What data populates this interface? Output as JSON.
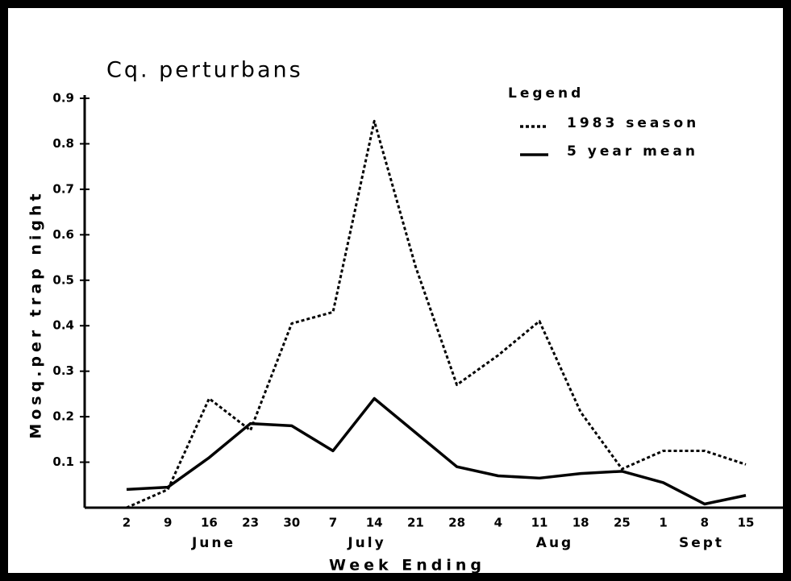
{
  "chart_data": {
    "type": "line",
    "title": "Cq. perturbans",
    "x_label": "Week Ending",
    "y_label": "Mosq.per trap night",
    "legend_title": "Legend",
    "categories": [
      "2",
      "9",
      "16",
      "23",
      "30",
      "7",
      "14",
      "21",
      "28",
      "4",
      "11",
      "18",
      "25",
      "1",
      "8",
      "15"
    ],
    "groups": [
      "June",
      "July",
      "Aug",
      "Sept"
    ],
    "series": [
      {
        "name": "1983 season",
        "color": "#000000",
        "dash": "dotted",
        "values": [
          0.0,
          0.04,
          0.24,
          0.17,
          0.405,
          0.43,
          0.85,
          0.53,
          0.27,
          0.335,
          0.41,
          0.21,
          0.085,
          0.125,
          0.125,
          0.095
        ]
      },
      {
        "name": "5 year mean",
        "color": "#000000",
        "dash": "solid",
        "values": [
          0.04,
          0.045,
          0.11,
          0.185,
          0.18,
          0.125,
          0.24,
          0.165,
          0.09,
          0.07,
          0.065,
          0.075,
          0.08,
          0.055,
          0.008,
          0.027
        ]
      }
    ],
    "ylim": [
      0,
      0.9
    ],
    "yticks": [
      0.1,
      0.2,
      0.3,
      0.4,
      0.5,
      0.6,
      0.7,
      0.8,
      0.9
    ],
    "grid": false
  }
}
